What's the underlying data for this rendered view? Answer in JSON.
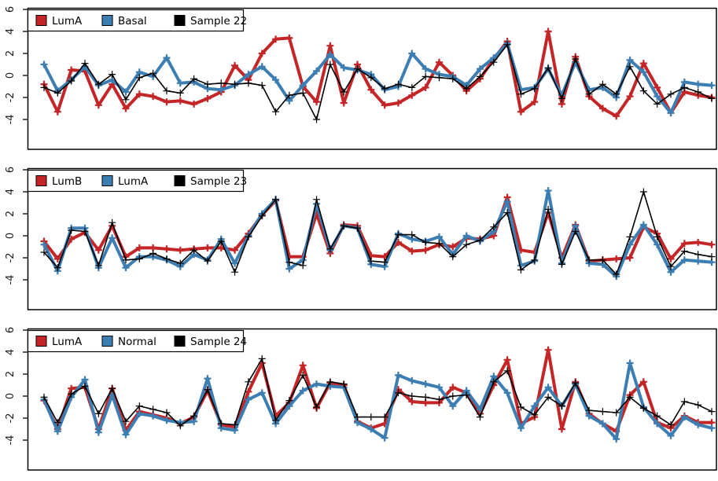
{
  "figure_background": "#ffffff",
  "colors": {
    "red": "#C42527",
    "blue": "#3D7EB2",
    "black": "#000000",
    "axis": "#000000",
    "tick_label": "#1b1b1b"
  },
  "axis": {
    "yticks": [
      6,
      4,
      2,
      0,
      -2,
      -4
    ],
    "ylim": [
      -6.8,
      6.9
    ],
    "grid": false,
    "x_tick_labels": []
  },
  "chart_data": [
    {
      "type": "line",
      "title": "",
      "legend_position": "top-left",
      "legend": [
        {
          "label": "LumA",
          "color": "#C42527"
        },
        {
          "label": "Basal",
          "color": "#3D7EB2"
        },
        {
          "label": "Sample 22",
          "color": "#000000"
        }
      ],
      "yticks": [
        6,
        4,
        2,
        0,
        -2,
        -4
      ],
      "series": [
        {
          "name": "LumA",
          "color": "#C42527",
          "line_width": 4,
          "marker": "plus",
          "values": [
            -0.8,
            -3.3,
            0.5,
            0.4,
            -2.7,
            -0.8,
            -3.0,
            -1.7,
            -1.9,
            -2.4,
            -2.3,
            -2.6,
            -2.1,
            -1.5,
            0.9,
            -0.4,
            2.0,
            3.3,
            3.4,
            -1.0,
            -2.4,
            2.7,
            -2.5,
            1.0,
            -1.3,
            -2.7,
            -2.5,
            -1.8,
            -1.1,
            1.2,
            0.0,
            -1.4,
            -0.3,
            1.5,
            3.1,
            -3.3,
            -2.4,
            4.0,
            -2.6,
            1.7,
            -1.9,
            -3.0,
            -3.7,
            -1.9,
            1.1,
            -1.1,
            -3.4,
            -1.5,
            -1.8,
            -2.0
          ]
        },
        {
          "name": "Basal",
          "color": "#3D7EB2",
          "line_width": 4,
          "marker": "plus",
          "values": [
            1.0,
            -1.4,
            -0.4,
            0.8,
            -0.9,
            -0.4,
            -1.5,
            0.3,
            -0.1,
            1.6,
            -0.7,
            -0.6,
            -1.2,
            -1.3,
            -0.9,
            0.1,
            0.8,
            -0.4,
            -2.3,
            -0.9,
            0.4,
            1.9,
            0.7,
            0.5,
            0.1,
            -1.3,
            -1.0,
            2.0,
            0.6,
            0.1,
            -0.1,
            -0.9,
            0.6,
            1.6,
            2.9,
            -1.3,
            -1.1,
            0.6,
            -1.8,
            1.2,
            -1.3,
            -1.1,
            -2.0,
            1.4,
            0.3,
            -1.9,
            -3.4,
            -0.6,
            -0.8,
            -0.9
          ]
        },
        {
          "name": "Sample 22",
          "color": "#000000",
          "line_width": 1.6,
          "marker": "plus",
          "values": [
            -1.1,
            -1.6,
            -0.5,
            1.1,
            -0.8,
            0.1,
            -2.2,
            -0.2,
            0.2,
            -1.4,
            -1.6,
            -0.3,
            -0.8,
            -0.7,
            -0.8,
            -0.7,
            -0.9,
            -3.3,
            -1.8,
            -1.6,
            -4.0,
            1.0,
            -1.5,
            0.6,
            -0.2,
            -1.2,
            -0.8,
            -1.1,
            -0.1,
            -0.2,
            -0.3,
            -1.2,
            -0.1,
            1.2,
            2.8,
            -1.7,
            -1.2,
            0.7,
            -2.1,
            1.5,
            -1.7,
            -0.8,
            -1.7,
            0.8,
            -1.4,
            -2.6,
            -1.7,
            -1.1,
            -1.5,
            -2.1
          ]
        }
      ]
    },
    {
      "type": "line",
      "title": "",
      "legend_position": "top-left",
      "legend": [
        {
          "label": "LumB",
          "color": "#C42527"
        },
        {
          "label": "LumA",
          "color": "#3D7EB2"
        },
        {
          "label": "Sample 23",
          "color": "#000000"
        }
      ],
      "yticks": [
        6,
        4,
        2,
        0,
        -2,
        -4
      ],
      "series": [
        {
          "name": "LumB",
          "color": "#C42527",
          "line_width": 4,
          "marker": "plus",
          "values": [
            -0.5,
            -2.1,
            -0.3,
            0.3,
            -1.3,
            0.9,
            -1.9,
            -1.1,
            -1.1,
            -1.2,
            -1.3,
            -1.2,
            -1.1,
            -1.1,
            -1.3,
            0.2,
            1.9,
            3.2,
            -1.9,
            -1.9,
            2.0,
            -1.6,
            1.0,
            0.9,
            -1.8,
            -1.9,
            -0.6,
            -1.4,
            -1.3,
            -0.8,
            -1.0,
            -0.2,
            -0.3,
            0.0,
            3.5,
            -1.3,
            -1.5,
            2.1,
            -2.0,
            1.0,
            -2.3,
            -2.2,
            -2.1,
            -2.0,
            0.8,
            0.2,
            -2.1,
            -0.7,
            -0.6,
            -0.8
          ]
        },
        {
          "name": "LumA",
          "color": "#3D7EB2",
          "line_width": 4,
          "marker": "plus",
          "values": [
            -0.8,
            -3.2,
            0.7,
            0.7,
            -2.9,
            -0.2,
            -2.9,
            -1.9,
            -1.9,
            -2.2,
            -2.8,
            -1.7,
            -2.2,
            -0.3,
            -2.5,
            0.0,
            2.0,
            3.3,
            -3.0,
            -2.2,
            2.9,
            -1.3,
            0.9,
            0.7,
            -2.6,
            -2.8,
            0.2,
            -0.3,
            -0.5,
            -0.1,
            -1.7,
            0.0,
            -0.5,
            0.4,
            3.1,
            -2.7,
            -2.3,
            4.1,
            -2.5,
            0.9,
            -2.5,
            -2.6,
            -3.7,
            -0.8,
            1.0,
            -0.8,
            -3.3,
            -2.2,
            -2.3,
            -2.4
          ]
        },
        {
          "name": "Sample 23",
          "color": "#000000",
          "line_width": 1.6,
          "marker": "plus",
          "values": [
            -1.5,
            -2.9,
            0.5,
            0.4,
            -2.7,
            1.2,
            -2.2,
            -2.1,
            -1.6,
            -2.1,
            -2.5,
            -1.3,
            -2.3,
            -0.5,
            -3.3,
            -0.1,
            1.8,
            3.3,
            -2.4,
            -2.7,
            3.3,
            -1.2,
            0.9,
            0.7,
            -2.3,
            -2.4,
            0.1,
            0.1,
            -0.6,
            -0.7,
            -1.9,
            -0.8,
            -0.4,
            0.8,
            2.1,
            -3.1,
            -2.2,
            2.4,
            -2.6,
            0.4,
            -2.2,
            -2.2,
            -3.5,
            -0.1,
            4.0,
            -0.1,
            -2.8,
            -1.4,
            -1.7,
            -1.9
          ]
        }
      ]
    },
    {
      "type": "line",
      "title": "",
      "legend_position": "top-left",
      "legend": [
        {
          "label": "LumA",
          "color": "#C42527"
        },
        {
          "label": "Normal",
          "color": "#3D7EB2"
        },
        {
          "label": "Sample 24",
          "color": "#000000"
        }
      ],
      "yticks": [
        6,
        4,
        2,
        0,
        -2,
        -4
      ],
      "series": [
        {
          "name": "LumA",
          "color": "#C42527",
          "line_width": 4,
          "marker": "plus",
          "values": [
            -0.4,
            -3.0,
            0.7,
            0.8,
            -3.0,
            0.7,
            -3.1,
            -1.4,
            -1.7,
            -2.0,
            -2.5,
            -1.9,
            0.5,
            -2.6,
            -2.8,
            0.4,
            3.0,
            -1.8,
            -0.6,
            2.8,
            -1.1,
            1.2,
            1.0,
            -2.3,
            -2.9,
            -2.5,
            0.6,
            -0.5,
            -0.6,
            -0.6,
            0.8,
            0.3,
            -1.6,
            1.0,
            3.3,
            -2.5,
            -1.9,
            4.2,
            -3.0,
            1.3,
            -1.6,
            -2.5,
            -3.2,
            0.1,
            1.3,
            -2.4,
            -2.9,
            -1.8,
            -2.4,
            -2.4
          ]
        },
        {
          "name": "Normal",
          "color": "#3D7EB2",
          "line_width": 4,
          "marker": "plus",
          "values": [
            -0.3,
            -3.2,
            -0.1,
            1.5,
            -3.3,
            0.1,
            -3.5,
            -1.6,
            -1.8,
            -2.2,
            -2.4,
            -2.3,
            1.6,
            -2.9,
            -3.1,
            -0.3,
            0.3,
            -2.5,
            -0.9,
            0.5,
            1.1,
            0.9,
            0.8,
            -2.4,
            -3.0,
            -3.8,
            1.9,
            1.4,
            1.1,
            0.8,
            -0.9,
            0.5,
            -1.2,
            1.8,
            0.3,
            -2.9,
            -0.9,
            0.8,
            -0.9,
            1.1,
            -1.8,
            -2.5,
            -3.9,
            3.0,
            -1.0,
            -2.5,
            -3.6,
            -1.9,
            -2.6,
            -2.9
          ]
        },
        {
          "name": "Sample 24",
          "color": "#000000",
          "line_width": 1.6,
          "marker": "plus",
          "values": [
            -0.1,
            -2.4,
            0.2,
            0.9,
            -1.6,
            0.7,
            -2.3,
            -0.9,
            -1.2,
            -1.5,
            -2.7,
            -1.8,
            0.6,
            -2.5,
            -2.6,
            1.3,
            3.4,
            -2.2,
            -0.4,
            1.9,
            -1.0,
            1.3,
            1.1,
            -1.9,
            -1.9,
            -1.9,
            0.3,
            0.0,
            -0.1,
            -0.3,
            0.0,
            0.1,
            -1.9,
            1.3,
            2.3,
            -1.0,
            -1.7,
            -0.1,
            -0.9,
            1.2,
            -1.3,
            -1.4,
            -1.5,
            -0.1,
            -1.1,
            -1.8,
            -2.6,
            -0.5,
            -0.8,
            -1.4
          ]
        }
      ]
    }
  ]
}
